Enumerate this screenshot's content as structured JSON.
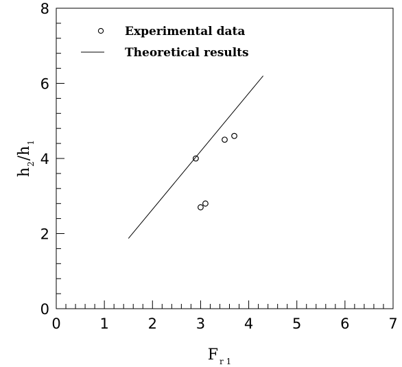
{
  "chart_data": {
    "type": "scatter",
    "xlabel": {
      "main": "F",
      "sub": "r 1"
    },
    "ylabel": {
      "main1": "h",
      "sub1": "2",
      "slash": "/",
      "main2": "h",
      "sub2": "1"
    },
    "xlim": [
      0,
      7
    ],
    "ylim": [
      0,
      8
    ],
    "x_ticks": [
      "0",
      "1",
      "2",
      "3",
      "4",
      "5",
      "6",
      "7"
    ],
    "y_ticks": [
      "0",
      "2",
      "4",
      "6",
      "8"
    ],
    "x_minor_step": 0.2,
    "y_minor_step": 0.4,
    "grid": false,
    "legend_position": "top-left",
    "series": [
      {
        "name": "Experimental data",
        "kind": "markers",
        "marker": "open-circle",
        "points": [
          {
            "x": 2.9,
            "y": 4.0
          },
          {
            "x": 3.0,
            "y": 2.7
          },
          {
            "x": 3.1,
            "y": 2.8
          },
          {
            "x": 3.5,
            "y": 4.5
          },
          {
            "x": 3.7,
            "y": 4.6
          }
        ]
      },
      {
        "name": "Theoretical results",
        "kind": "line",
        "points": [
          {
            "x": 1.5,
            "y": 1.87
          },
          {
            "x": 4.3,
            "y": 6.2
          }
        ]
      }
    ],
    "colors": {
      "ink": "#000000",
      "background": "#ffffff"
    }
  }
}
